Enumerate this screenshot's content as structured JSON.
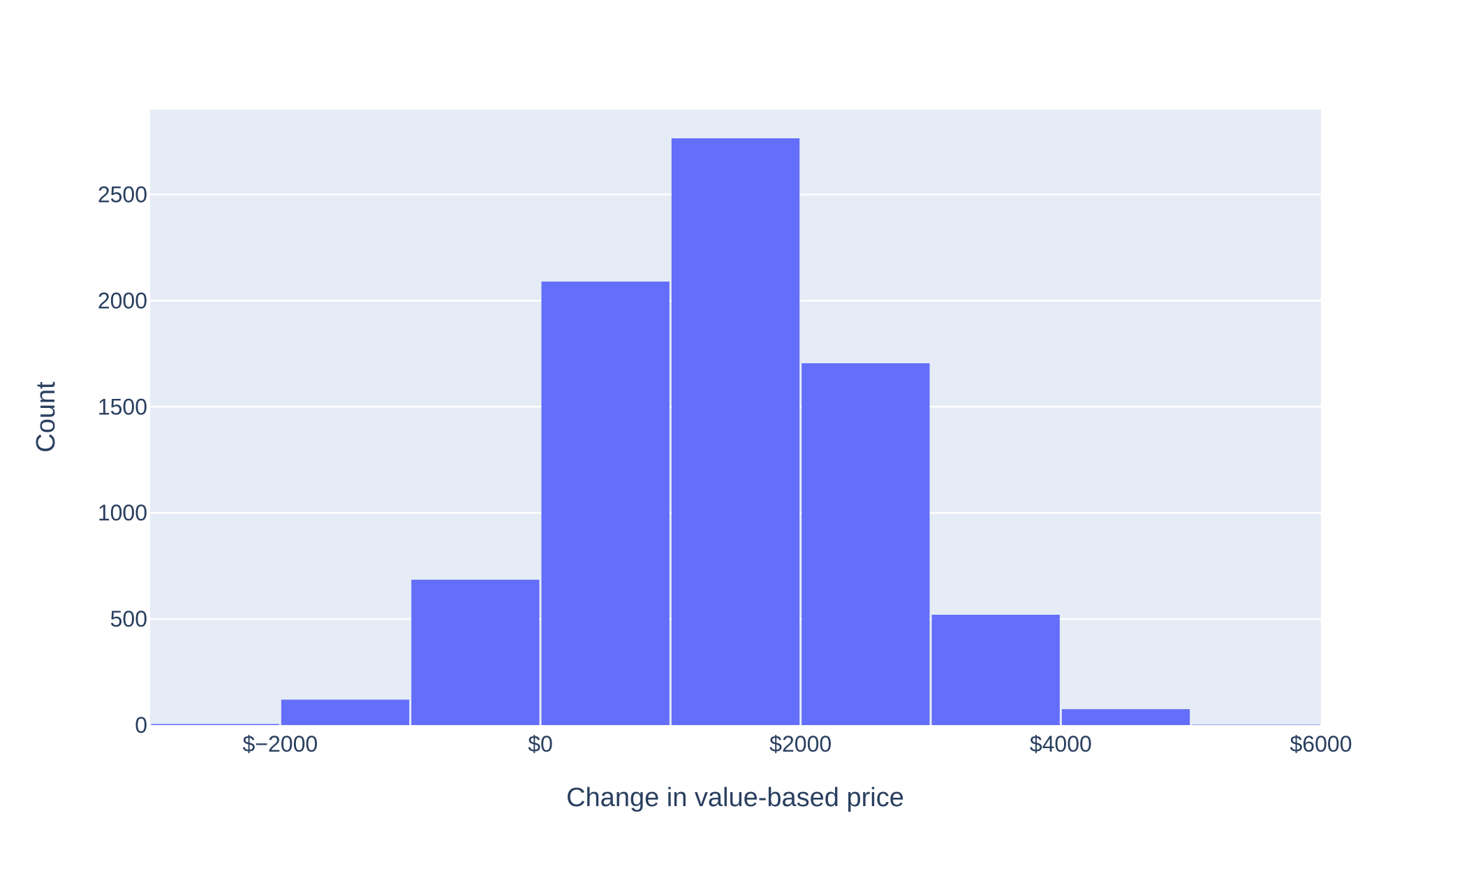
{
  "chart_data": {
    "type": "bar",
    "subtype": "histogram",
    "xlabel": "Change in value-based price",
    "ylabel": "Count",
    "xlim": [
      -3000,
      6000
    ],
    "ylim": [
      0,
      2900
    ],
    "x_ticks": [
      -2000,
      0,
      2000,
      4000,
      6000
    ],
    "x_tick_labels": [
      "$−2000",
      "$0",
      "$2000",
      "$4000",
      "$6000"
    ],
    "y_ticks": [
      0,
      500,
      1000,
      1500,
      2000,
      2500
    ],
    "y_tick_labels": [
      "0",
      "500",
      "1000",
      "1500",
      "2000",
      "2500"
    ],
    "bins": [
      {
        "start": -3000,
        "end": -2000,
        "count": 5
      },
      {
        "start": -2000,
        "end": -1000,
        "count": 120
      },
      {
        "start": -1000,
        "end": 0,
        "count": 685
      },
      {
        "start": 0,
        "end": 1000,
        "count": 2090
      },
      {
        "start": 1000,
        "end": 2000,
        "count": 2765
      },
      {
        "start": 2000,
        "end": 3000,
        "count": 1705
      },
      {
        "start": 3000,
        "end": 4000,
        "count": 520
      },
      {
        "start": 4000,
        "end": 5000,
        "count": 75
      },
      {
        "start": 5000,
        "end": 6000,
        "count": 2
      }
    ],
    "bar_color": "#636efa",
    "plot_bg": "#e5ecf6",
    "grid": true
  }
}
